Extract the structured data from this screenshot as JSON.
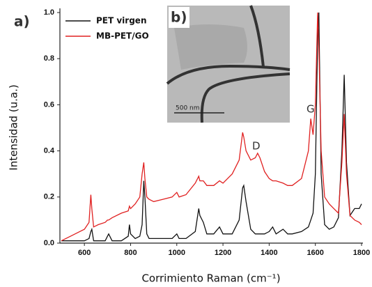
{
  "chart_data": {
    "type": "line",
    "panel_labels": [
      "a)",
      "b)"
    ],
    "inset_scale_label": "500 nm",
    "xlabel": "Corrimiento Raman (cm⁻¹)",
    "ylabel": "Intensidad (u.a.)",
    "annotations": [
      "D",
      "G"
    ],
    "xlim": [
      500,
      1800
    ],
    "ylim": [
      0,
      1.0
    ],
    "xticks": [
      600,
      800,
      1000,
      1200,
      1400,
      1600,
      1800
    ],
    "yticks": [
      {
        "value": 0,
        "label": "0.0"
      },
      {
        "value": 0.2,
        "label": "0.2"
      },
      {
        "value": 0.4,
        "label": "0.4"
      },
      {
        "value": 0.6,
        "label": "0.6"
      },
      {
        "value": 0.8,
        "label": "0.8"
      },
      {
        "value": 1.0,
        "label": "1.0"
      }
    ],
    "legend": "upper left",
    "x": [
      500,
      540,
      580,
      600,
      620,
      628,
      632,
      640,
      660,
      690,
      700,
      705,
      720,
      760,
      790,
      795,
      800,
      820,
      840,
      850,
      857,
      862,
      870,
      880,
      900,
      940,
      980,
      1000,
      1010,
      1040,
      1080,
      1095,
      1100,
      1115,
      1130,
      1160,
      1185,
      1200,
      1240,
      1270,
      1285,
      1290,
      1300,
      1320,
      1340,
      1350,
      1360,
      1380,
      1400,
      1415,
      1430,
      1460,
      1480,
      1500,
      1540,
      1570,
      1580,
      1590,
      1600,
      1610,
      1615,
      1625,
      1640,
      1660,
      1680,
      1700,
      1715,
      1725,
      1735,
      1750,
      1770,
      1790,
      1800
    ],
    "series": [
      {
        "name": "PET virgen",
        "color": "#111111",
        "values": [
          0.01,
          0.01,
          0.01,
          0.01,
          0.02,
          0.05,
          0.06,
          0.01,
          0.01,
          0.01,
          0.03,
          0.04,
          0.01,
          0.01,
          0.03,
          0.08,
          0.04,
          0.02,
          0.03,
          0.08,
          0.27,
          0.2,
          0.04,
          0.02,
          0.02,
          0.02,
          0.02,
          0.04,
          0.02,
          0.02,
          0.05,
          0.15,
          0.12,
          0.09,
          0.04,
          0.04,
          0.07,
          0.04,
          0.04,
          0.1,
          0.24,
          0.25,
          0.18,
          0.06,
          0.04,
          0.04,
          0.04,
          0.04,
          0.05,
          0.07,
          0.04,
          0.06,
          0.04,
          0.04,
          0.05,
          0.07,
          0.1,
          0.13,
          0.3,
          0.9,
          1.0,
          0.3,
          0.08,
          0.06,
          0.07,
          0.11,
          0.4,
          0.73,
          0.35,
          0.12,
          0.15,
          0.15,
          0.17
        ]
      },
      {
        "name": "MB-PET/GO",
        "color": "#e02020",
        "values": [
          0.01,
          0.03,
          0.05,
          0.06,
          0.09,
          0.21,
          0.15,
          0.07,
          0.08,
          0.09,
          0.1,
          0.1,
          0.11,
          0.13,
          0.14,
          0.16,
          0.15,
          0.17,
          0.2,
          0.3,
          0.35,
          0.28,
          0.2,
          0.19,
          0.18,
          0.19,
          0.2,
          0.22,
          0.2,
          0.21,
          0.26,
          0.29,
          0.27,
          0.27,
          0.25,
          0.25,
          0.27,
          0.26,
          0.3,
          0.36,
          0.48,
          0.46,
          0.4,
          0.36,
          0.37,
          0.39,
          0.37,
          0.31,
          0.28,
          0.27,
          0.27,
          0.26,
          0.25,
          0.25,
          0.28,
          0.4,
          0.54,
          0.47,
          0.6,
          1.0,
          0.85,
          0.4,
          0.2,
          0.17,
          0.15,
          0.13,
          0.35,
          0.56,
          0.3,
          0.12,
          0.1,
          0.09,
          0.08
        ]
      }
    ]
  }
}
